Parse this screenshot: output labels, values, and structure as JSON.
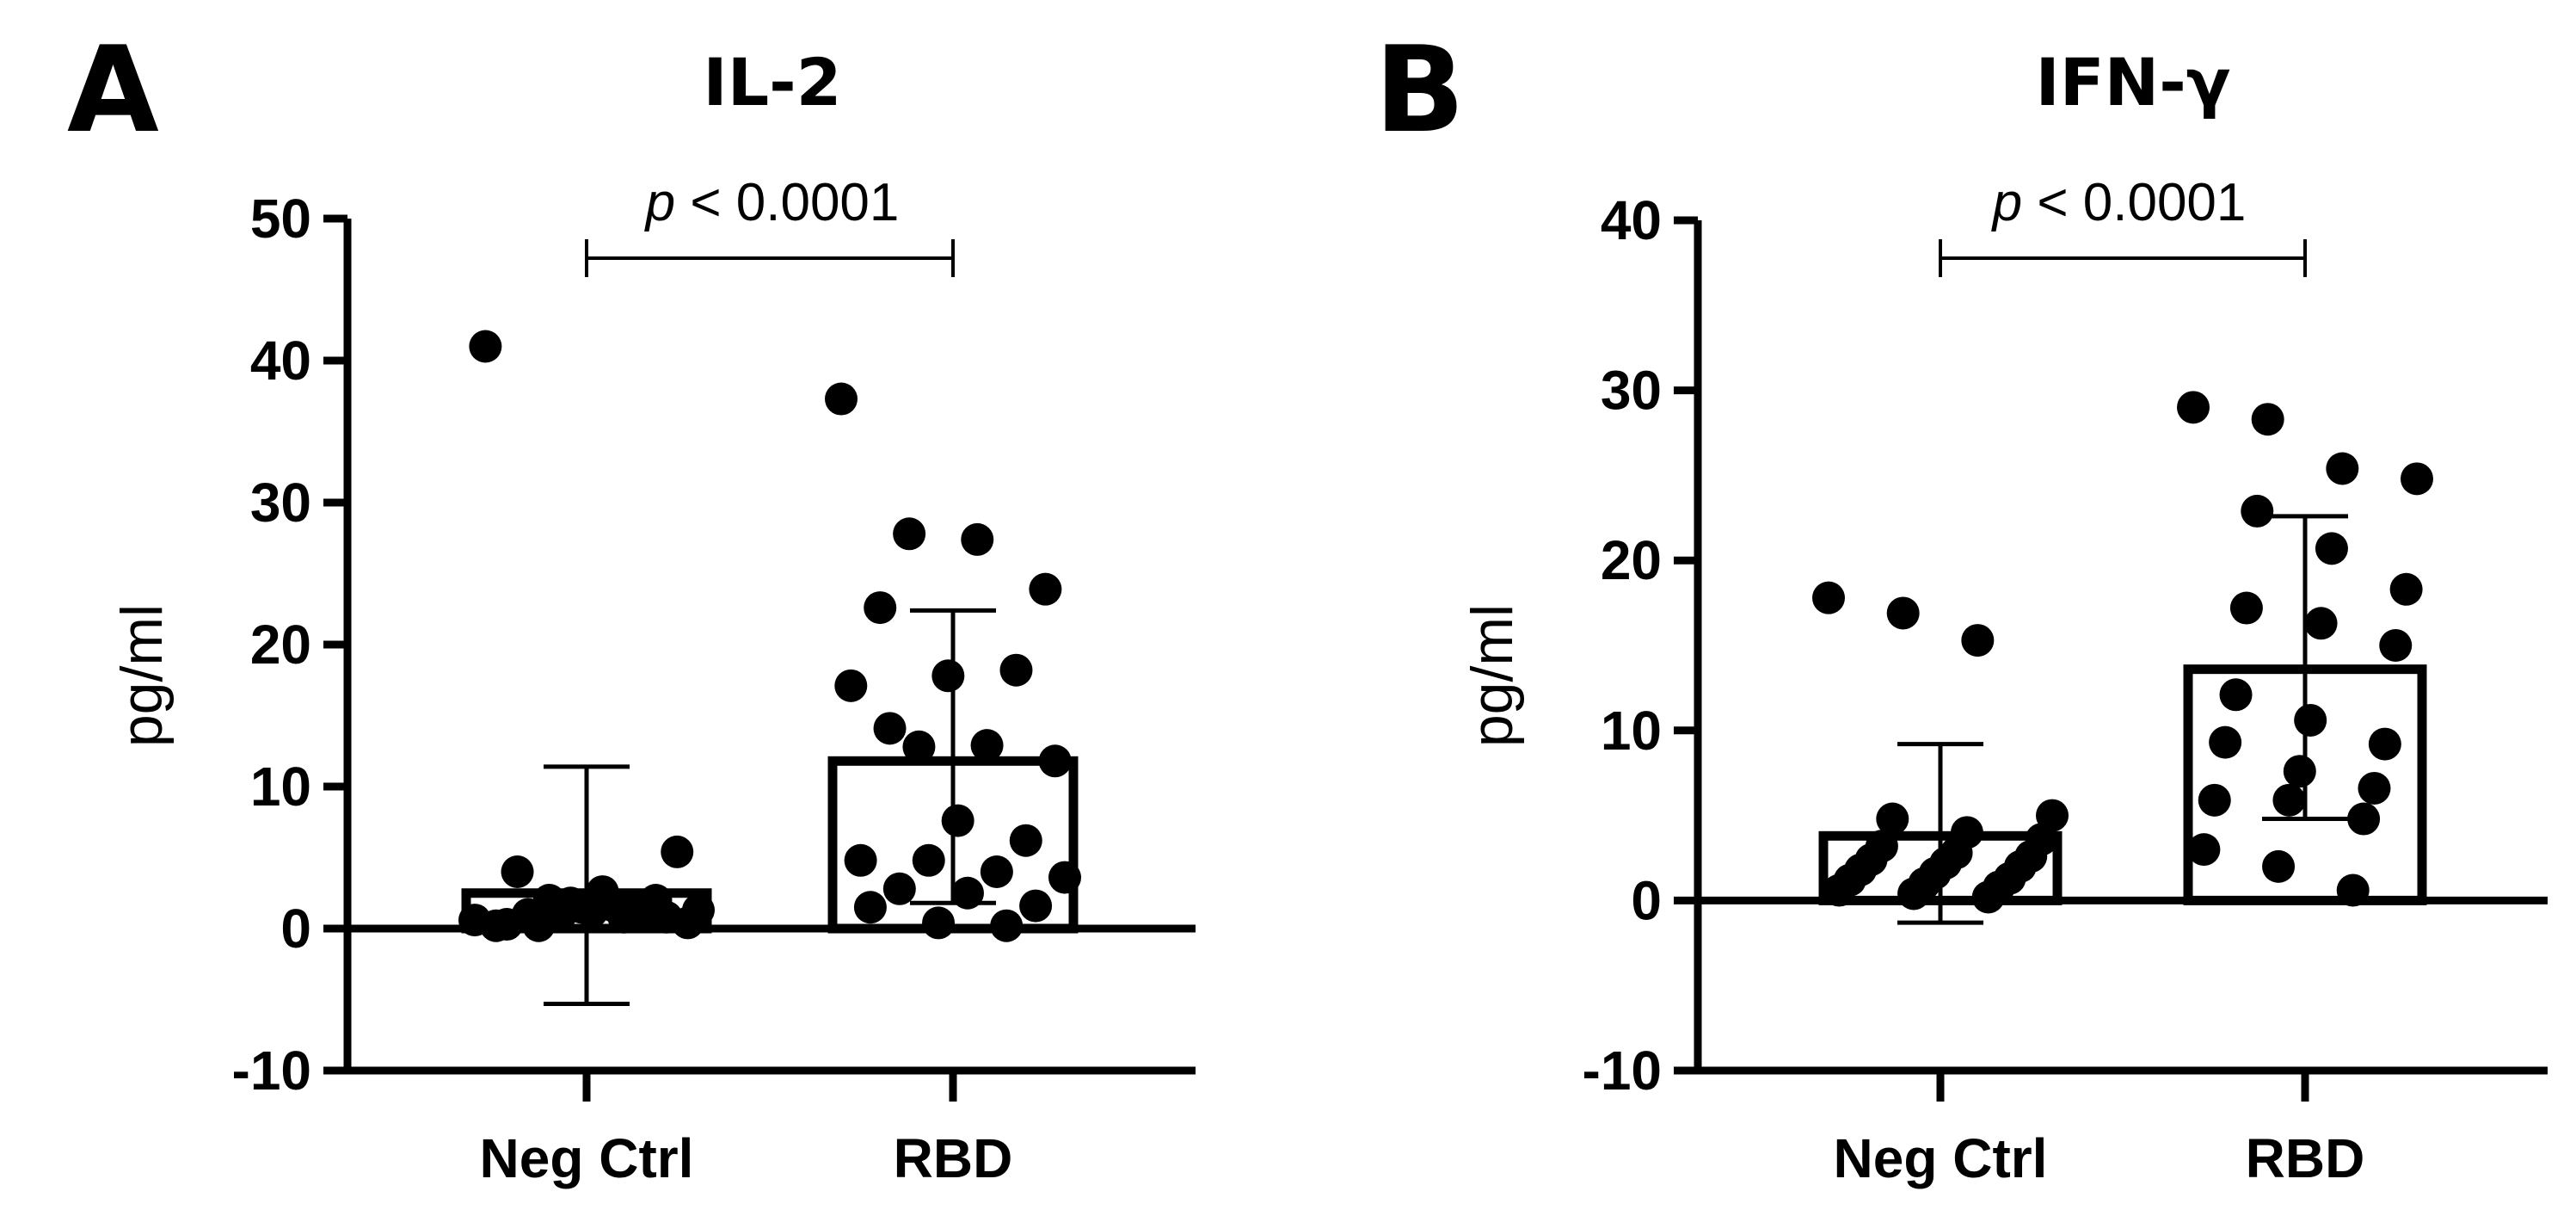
{
  "chart_data": [
    {
      "type": "bar",
      "panel_letter": "A",
      "title": "IL-2",
      "ylabel": "pg/ml",
      "xlabel": "",
      "ylim": [
        -10,
        50
      ],
      "yticks": [
        -10,
        0,
        10,
        20,
        30,
        40,
        50
      ],
      "yticklabels": [
        "-10",
        "0",
        "10",
        "20",
        "30",
        "40",
        "50"
      ],
      "categories": [
        "Neg Ctrl",
        "RBD"
      ],
      "means": [
        2.5,
        11.8
      ],
      "error_upper": [
        11.4,
        22.4
      ],
      "error_lower": [
        -5.3,
        1.8
      ],
      "points": [
        [
          0.6,
          2.0,
          0.8,
          1.3,
          0.2,
          1.6,
          0.4,
          1.0,
          2.6,
          5.4,
          4.0,
          1.2,
          0.8,
          0.3,
          1.5,
          2.0,
          0.2,
          1.8,
          1.0,
          41.0,
          0.9,
          1.4
        ],
        [
          37.3,
          27.8,
          27.4,
          23.9,
          22.6,
          17.8,
          18.2,
          17.1,
          12.8,
          12.9,
          11.8,
          14.1,
          7.6,
          6.2,
          4.8,
          4.8,
          4.0,
          3.6,
          2.8,
          2.5,
          1.6,
          1.5,
          0.4,
          0.2
        ]
      ],
      "comparison": {
        "label_italic": "p",
        "label_rest": " < 0.0001",
        "from": "Neg Ctrl",
        "to": "RBD"
      }
    },
    {
      "type": "bar",
      "panel_letter": "B",
      "title": "IFN-γ",
      "ylabel": "pg/ml",
      "xlabel": "",
      "ylim": [
        -10,
        40
      ],
      "yticks": [
        -10,
        0,
        10,
        20,
        30,
        40
      ],
      "yticklabels": [
        "-10",
        "0",
        "10",
        "20",
        "30",
        "40"
      ],
      "categories": [
        "Neg Ctrl",
        "RBD"
      ],
      "means": [
        3.8,
        13.6
      ],
      "error_upper": [
        9.2,
        22.6
      ],
      "error_lower": [
        -1.3,
        4.8
      ],
      "points": [
        [
          17.8,
          16.9,
          15.3,
          5.0,
          4.8,
          4.0,
          3.6,
          3.2,
          2.8,
          2.6,
          2.4,
          2.2,
          2.0,
          1.8,
          1.6,
          1.3,
          1.2,
          1.0,
          0.8,
          0.6,
          0.4,
          0.2
        ],
        [
          29.0,
          28.3,
          25.4,
          24.8,
          22.9,
          20.7,
          18.3,
          17.2,
          16.3,
          15.0,
          12.1,
          10.6,
          9.2,
          9.3,
          7.6,
          6.6,
          5.9,
          5.9,
          4.8,
          3.0,
          2.0,
          0.6
        ]
      ],
      "comparison": {
        "label_italic": "p",
        "label_rest": " < 0.0001",
        "from": "Neg Ctrl",
        "to": "RBD"
      }
    }
  ]
}
